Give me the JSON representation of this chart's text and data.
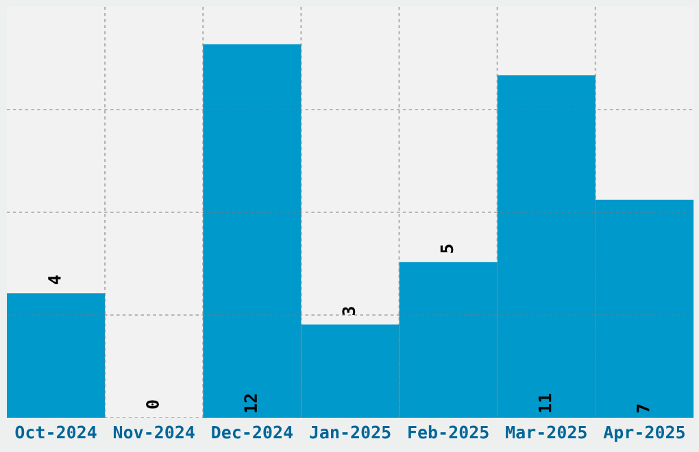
{
  "chart_data": {
    "type": "bar",
    "categories": [
      "Oct-2024",
      "Nov-2024",
      "Dec-2024",
      "Jan-2025",
      "Feb-2025",
      "Mar-2025",
      "Apr-2025"
    ],
    "values": [
      4,
      0,
      12,
      3,
      5,
      11,
      7
    ],
    "color": "#0099cc",
    "data_labels": true,
    "ylim": [
      0,
      13.2
    ],
    "yticks": [
      {
        "value": 0,
        "label": null
      },
      {
        "value": 3.3,
        "label": null
      },
      {
        "value": 6.6,
        "label": null
      },
      {
        "value": 9.9,
        "label": null
      }
    ],
    "tick_labels": "x",
    "grid": true
  }
}
